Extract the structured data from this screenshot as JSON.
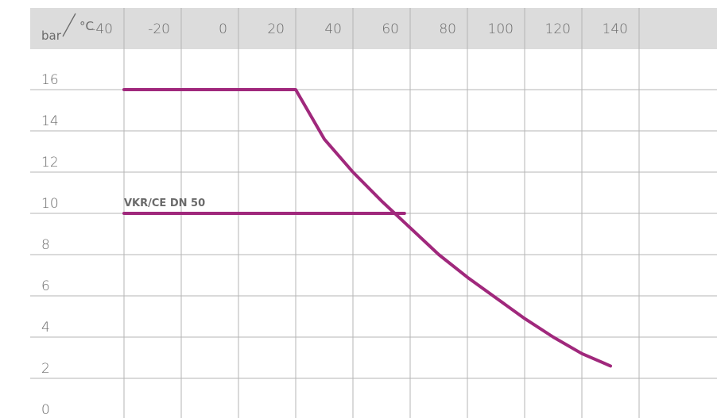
{
  "chart_data": {
    "type": "line",
    "xunit": "°C",
    "yunit": "bar",
    "x_ticks": [
      -40,
      -20,
      0,
      20,
      40,
      60,
      80,
      100,
      120,
      140
    ],
    "y_ticks": [
      0,
      2,
      4,
      6,
      8,
      10,
      12,
      14,
      16
    ],
    "xlim": [
      -50,
      150
    ],
    "ylim": [
      0,
      16
    ],
    "grid": true,
    "series": [
      {
        "name": "",
        "color": "#a0287c",
        "x": [
          -30,
          30,
          40,
          50,
          60,
          70,
          80,
          90,
          100,
          110,
          120,
          130,
          140
        ],
        "y": [
          16,
          16,
          13.6,
          12.0,
          10.6,
          9.3,
          8.0,
          6.9,
          5.9,
          4.9,
          4.0,
          3.2,
          2.6
        ]
      },
      {
        "name": "VKR/CE DN 50",
        "color": "#a0287c",
        "x": [
          -30,
          68
        ],
        "y": [
          10,
          10
        ]
      }
    ],
    "header_color": "#dcdcdc",
    "grid_color": "#b5b5b5"
  }
}
